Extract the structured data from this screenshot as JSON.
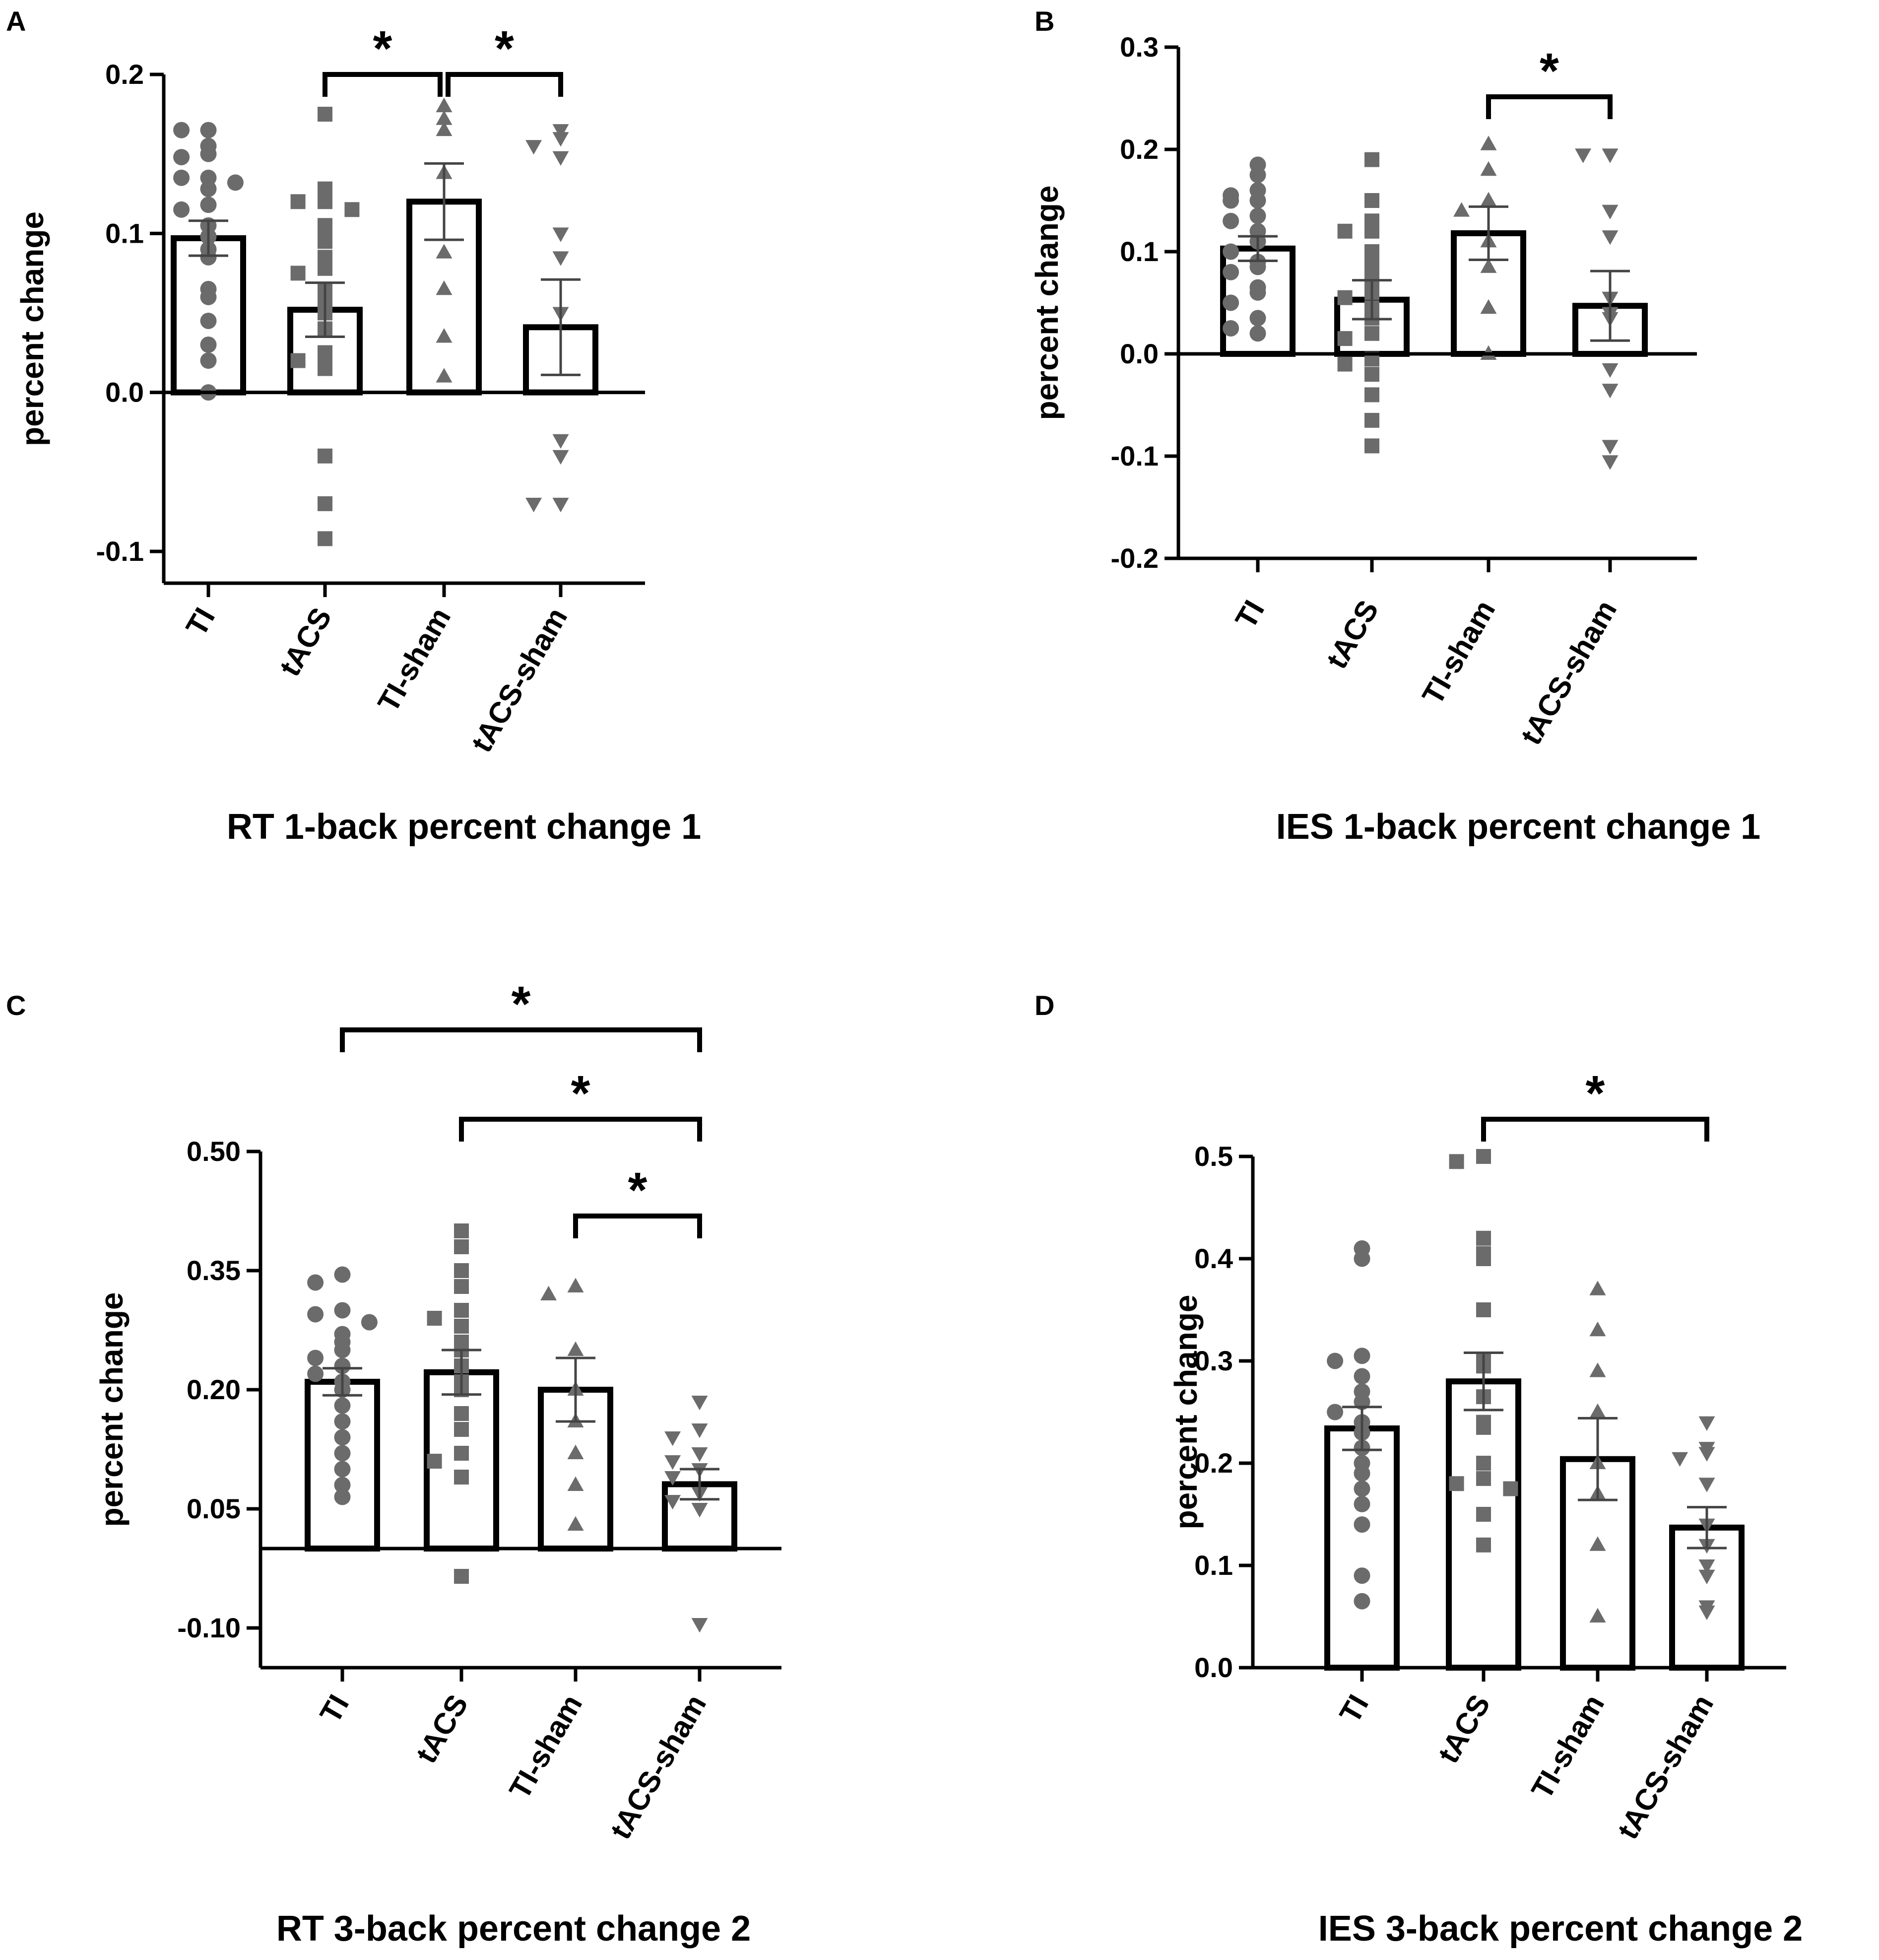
{
  "chart_data": [
    {
      "panel": "A",
      "type": "bar",
      "title": "RT 1-back percent change 1",
      "ylabel": "percent change",
      "xlabel": "",
      "categories": [
        "TI",
        "tACS",
        "TI-sham",
        "tACS-sham"
      ],
      "ylim": [
        -0.12,
        0.2
      ],
      "yticks": [
        -0.1,
        0.0,
        0.1,
        0.2
      ],
      "ytick_labels": [
        "-0.1",
        "0.0",
        "0.1",
        "0.2"
      ],
      "baseline": 0.0,
      "means": [
        0.097,
        0.052,
        0.12,
        0.041
      ],
      "sem": [
        0.011,
        0.017,
        0.024,
        0.03
      ],
      "markers": [
        "circle",
        "square",
        "triangle-up",
        "triangle-down"
      ],
      "points": [
        [
          0.165,
          0.165,
          0.155,
          0.15,
          0.148,
          0.135,
          0.135,
          0.132,
          0.128,
          0.118,
          0.115,
          0.105,
          0.098,
          0.09,
          0.085,
          0.065,
          0.06,
          0.045,
          0.03,
          0.02,
          0.0
        ],
        [
          0.175,
          0.128,
          0.12,
          0.12,
          0.115,
          0.105,
          0.098,
          0.095,
          0.085,
          0.078,
          0.075,
          0.065,
          0.058,
          0.05,
          0.04,
          0.025,
          0.02,
          0.02,
          0.015,
          -0.04,
          -0.07,
          -0.092
        ],
        [
          0.18,
          0.172,
          0.165,
          0.138,
          0.088,
          0.065,
          0.035,
          0.01
        ],
        [
          0.165,
          0.16,
          0.155,
          0.148,
          0.1,
          0.085,
          0.05,
          -0.03,
          -0.04,
          -0.07,
          -0.07
        ]
      ],
      "significance": [
        {
          "from": 1,
          "to": 2,
          "label": "*"
        },
        {
          "from": 2,
          "to": 3,
          "label": "*"
        }
      ]
    },
    {
      "panel": "B",
      "type": "bar",
      "title": "IES 1-back percent change 1",
      "ylabel": "percent change",
      "xlabel": "",
      "categories": [
        "TI",
        "tACS",
        "TI-sham",
        "tACS-sham"
      ],
      "ylim": [
        -0.2,
        0.3
      ],
      "yticks": [
        -0.2,
        -0.1,
        0.0,
        0.1,
        0.2,
        0.3
      ],
      "ytick_labels": [
        "-0.2",
        "-0.1",
        "0.0",
        "0.1",
        "0.2",
        "0.3"
      ],
      "baseline": 0.0,
      "means": [
        0.103,
        0.053,
        0.118,
        0.047
      ],
      "sem": [
        0.012,
        0.019,
        0.026,
        0.034
      ],
      "markers": [
        "circle",
        "square",
        "triangle-up",
        "triangle-down"
      ],
      "points": [
        [
          0.185,
          0.175,
          0.16,
          0.155,
          0.15,
          0.15,
          0.135,
          0.13,
          0.12,
          0.11,
          0.1,
          0.09,
          0.085,
          0.08,
          0.065,
          0.06,
          0.05,
          0.035,
          0.025,
          0.02
        ],
        [
          0.19,
          0.15,
          0.13,
          0.12,
          0.12,
          0.1,
          0.09,
          0.08,
          0.07,
          0.06,
          0.055,
          0.045,
          0.035,
          0.02,
          0.015,
          -0.005,
          -0.01,
          -0.02,
          -0.04,
          -0.065,
          -0.09
        ],
        [
          0.205,
          0.18,
          0.15,
          0.14,
          0.11,
          0.085,
          0.045,
          0.0
        ],
        [
          0.195,
          0.195,
          0.14,
          0.115,
          0.055,
          0.04,
          0.035,
          -0.015,
          -0.035,
          -0.09,
          -0.105
        ]
      ],
      "significance": [
        {
          "from": 2,
          "to": 3,
          "label": "*"
        }
      ]
    },
    {
      "panel": "C",
      "type": "bar",
      "title": "RT 3-back percent change 2",
      "ylabel": "percent change",
      "xlabel": "",
      "categories": [
        "TI",
        "tACS",
        "TI-sham",
        "tACS-sham"
      ],
      "ylim": [
        -0.15,
        0.5
      ],
      "yticks": [
        -0.1,
        0.05,
        0.2,
        0.35,
        0.5
      ],
      "ytick_labels": [
        "-0.10",
        "0.05",
        "0.20",
        "0.35",
        "0.50"
      ],
      "baseline": 0.0,
      "means": [
        0.21,
        0.222,
        0.2,
        0.081
      ],
      "sem": [
        0.017,
        0.028,
        0.04,
        0.019
      ],
      "markers": [
        "circle",
        "square",
        "triangle-up",
        "triangle-down"
      ],
      "points": [
        [
          0.345,
          0.335,
          0.3,
          0.295,
          0.285,
          0.27,
          0.26,
          0.25,
          0.24,
          0.23,
          0.22,
          0.21,
          0.2,
          0.18,
          0.16,
          0.14,
          0.12,
          0.1,
          0.08,
          0.065
        ],
        [
          0.4,
          0.38,
          0.35,
          0.33,
          0.3,
          0.29,
          0.28,
          0.26,
          0.25,
          0.23,
          0.21,
          0.2,
          0.17,
          0.15,
          0.12,
          0.11,
          0.09,
          -0.035
        ],
        [
          0.33,
          0.32,
          0.25,
          0.2,
          0.16,
          0.12,
          0.08,
          0.03
        ],
        [
          0.185,
          0.15,
          0.14,
          0.12,
          0.11,
          0.1,
          0.09,
          0.07,
          0.06,
          0.05,
          -0.095
        ]
      ],
      "significance": [
        {
          "from": 0,
          "to": 3,
          "label": "*"
        },
        {
          "from": 1,
          "to": 3,
          "label": "*"
        },
        {
          "from": 2,
          "to": 3,
          "label": "*"
        }
      ]
    },
    {
      "panel": "D",
      "type": "bar",
      "title": "IES 3-back percent change 2",
      "ylabel": "percent change",
      "xlabel": "",
      "categories": [
        "TI",
        "tACS",
        "TI-sham",
        "tACS-sham"
      ],
      "ylim": [
        0.0,
        0.5
      ],
      "yticks": [
        0.0,
        0.1,
        0.2,
        0.3,
        0.4,
        0.5
      ],
      "ytick_labels": [
        "0.0",
        "0.1",
        "0.2",
        "0.3",
        "0.4",
        "0.5"
      ],
      "baseline": 0.0,
      "means": [
        0.234,
        0.28,
        0.204,
        0.137
      ],
      "sem": [
        0.021,
        0.028,
        0.04,
        0.02
      ],
      "markers": [
        "circle",
        "square",
        "triangle-up",
        "triangle-down"
      ],
      "points": [
        [
          0.41,
          0.4,
          0.305,
          0.3,
          0.285,
          0.27,
          0.26,
          0.25,
          0.24,
          0.23,
          0.215,
          0.2,
          0.19,
          0.175,
          0.16,
          0.14,
          0.09,
          0.065
        ],
        [
          0.5,
          0.495,
          0.42,
          0.405,
          0.4,
          0.35,
          0.3,
          0.295,
          0.265,
          0.24,
          0.235,
          0.2,
          0.185,
          0.18,
          0.175,
          0.15,
          0.12
        ],
        [
          0.37,
          0.33,
          0.29,
          0.25,
          0.2,
          0.17,
          0.12,
          0.05
        ],
        [
          0.24,
          0.215,
          0.21,
          0.205,
          0.18,
          0.14,
          0.12,
          0.1,
          0.09,
          0.06,
          0.055
        ]
      ],
      "significance": [
        {
          "from": 1,
          "to": 3,
          "label": "*"
        }
      ]
    }
  ]
}
